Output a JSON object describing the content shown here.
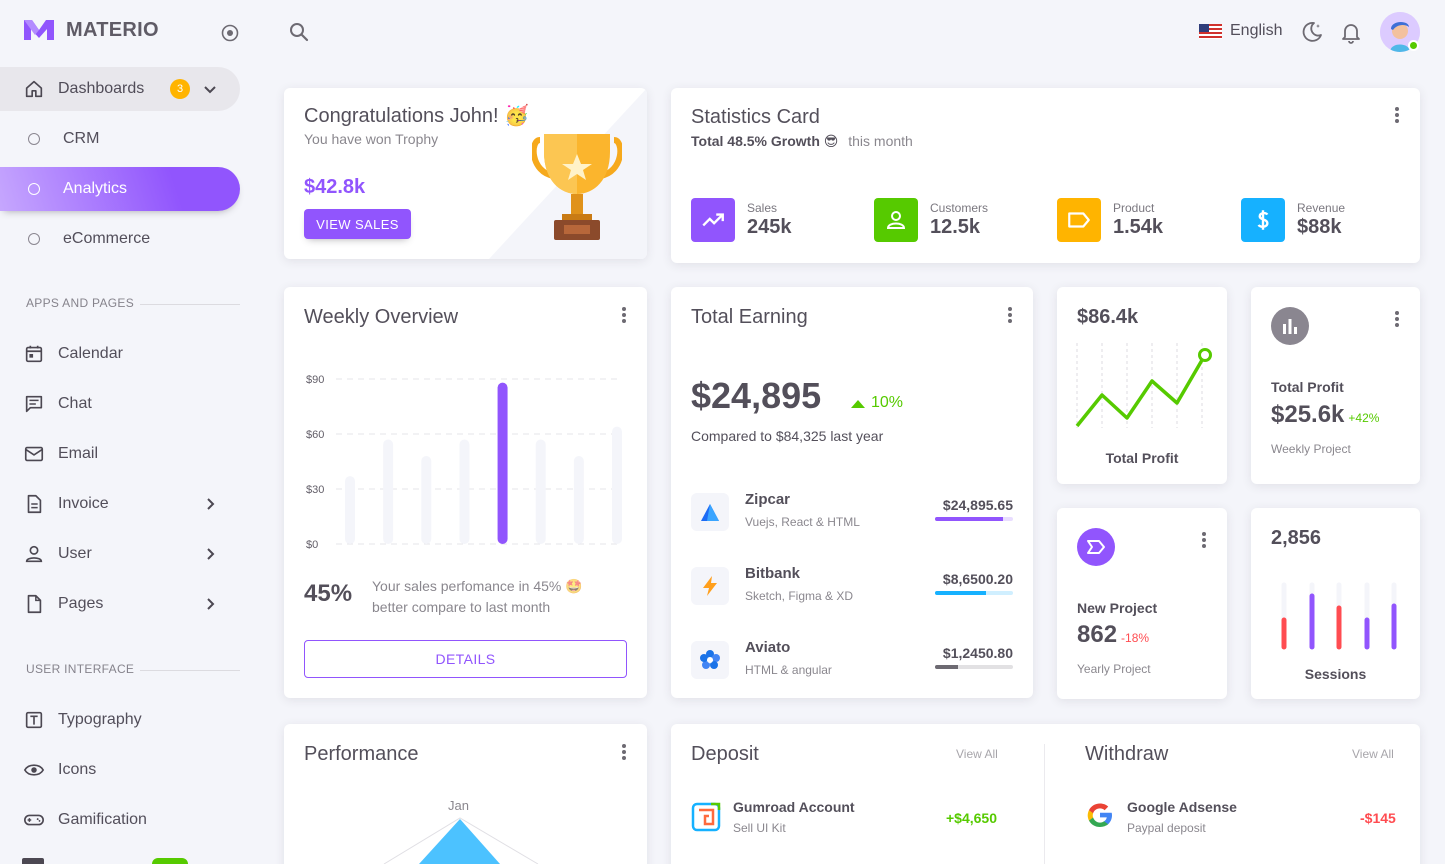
{
  "brand": {
    "name": "MATERIO"
  },
  "nav": {
    "dashboards": {
      "label": "Dashboards",
      "badge": "3"
    },
    "dash_items": [
      {
        "label": "CRM"
      },
      {
        "label": "Analytics"
      },
      {
        "label": "eCommerce"
      }
    ],
    "apps_section": "APPS AND PAGES",
    "apps": [
      {
        "label": "Calendar"
      },
      {
        "label": "Chat"
      },
      {
        "label": "Email"
      },
      {
        "label": "Invoice"
      },
      {
        "label": "User"
      },
      {
        "label": "Pages"
      }
    ],
    "ui_section": "USER INTERFACE",
    "ui": [
      {
        "label": "Typography"
      },
      {
        "label": "Icons"
      },
      {
        "label": "Gamification"
      }
    ]
  },
  "topbar": {
    "language": "English"
  },
  "congrats": {
    "title": "Congratulations John! 🥳",
    "subtitle": "You have won Trophy",
    "amount": "$42.8k",
    "button": "VIEW SALES"
  },
  "statistics": {
    "title": "Statistics Card",
    "growth": "Total 48.5% Growth 😎",
    "period": "this month",
    "items": [
      {
        "label": "Sales",
        "value": "245k",
        "color": "#9155fd",
        "icon": "trending-up-icon"
      },
      {
        "label": "Customers",
        "value": "12.5k",
        "color": "#56ca00",
        "icon": "account-icon"
      },
      {
        "label": "Product",
        "value": "1.54k",
        "color": "#ffb400",
        "icon": "label-icon"
      },
      {
        "label": "Revenue",
        "value": "$88k",
        "color": "#16b1ff",
        "icon": "dollar-icon"
      }
    ]
  },
  "weekly": {
    "title": "Weekly Overview",
    "yticks": [
      "$90",
      "$60",
      "$30",
      "$0"
    ],
    "percent": "45%",
    "text_line1": "Your sales perfomance in 45% 🤩",
    "text_line2": "better compare to last month",
    "button": "DETAILS"
  },
  "earning": {
    "title": "Total Earning",
    "amount": "$24,895",
    "change": "10%",
    "compare": "Compared to $84,325 last year",
    "items": [
      {
        "name": "Zipcar",
        "sub": "Vuejs, React & HTML",
        "amount": "$24,895.65",
        "progress": 0.87,
        "color": "#9155fd"
      },
      {
        "name": "Bitbank",
        "sub": "Sketch, Figma & XD",
        "amount": "$8,6500.20",
        "progress": 0.66,
        "color": "#16b1ff"
      },
      {
        "name": "Aviato",
        "sub": "HTML & angular",
        "amount": "$1,2450.80",
        "progress": 0.3,
        "color": "#6d6a72"
      }
    ]
  },
  "profit_line": {
    "value": "$86.4k",
    "label": "Total Profit"
  },
  "total_profit": {
    "label": "Total Profit",
    "value": "$25.6k",
    "change": "+42%",
    "sub": "Weekly Project"
  },
  "new_project": {
    "label": "New Project",
    "value": "862",
    "change": "-18%",
    "sub": "Yearly Project"
  },
  "sessions": {
    "value": "2,856",
    "label": "Sessions"
  },
  "performance": {
    "title": "Performance",
    "month": "Jan"
  },
  "deposit": {
    "title": "Deposit",
    "view_all": "View All",
    "item": {
      "name": "Gumroad Account",
      "sub": "Sell UI Kit",
      "amount": "+$4,650"
    }
  },
  "withdraw": {
    "title": "Withdraw",
    "view_all": "View All",
    "item": {
      "name": "Google Adsense",
      "sub": "Paypal deposit",
      "amount": "-$145"
    }
  },
  "chart_data": {
    "type": "bar",
    "categories": [
      "",
      "",
      "",
      "",
      "",
      "",
      "",
      ""
    ],
    "values": [
      37,
      57,
      48,
      57,
      88,
      57,
      48,
      64
    ],
    "ylim": [
      0,
      90
    ],
    "yticks": [
      "$0",
      "$30",
      "$60",
      "$90"
    ],
    "highlight_index": 4,
    "colors": {
      "bar": "#f4f5fa",
      "highlight": "#9155fd"
    }
  }
}
